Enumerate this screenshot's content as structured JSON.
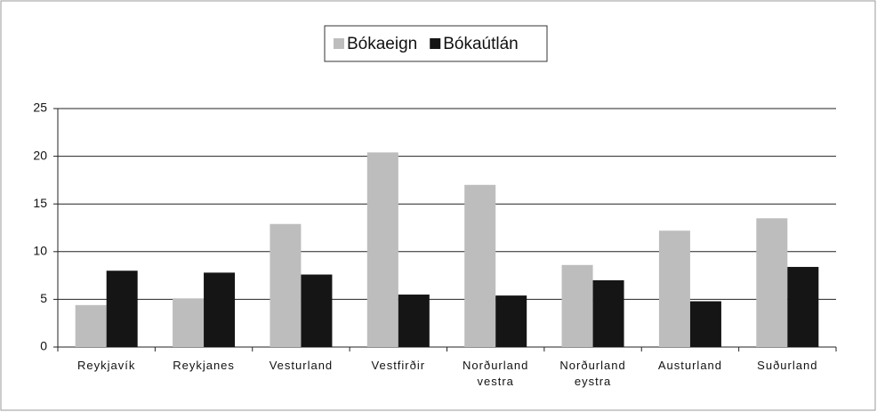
{
  "chart_data": {
    "type": "bar",
    "categories": [
      "Reykjavík",
      "Reykjanes",
      "Vesturland",
      "Vestfirðir",
      "Norðurland vestra",
      "Norðurland eystra",
      "Austurland",
      "Suðurland"
    ],
    "series": [
      {
        "name": "Bókaeign",
        "color": "#bdbdbd",
        "values": [
          4.4,
          5.1,
          12.9,
          20.4,
          17.0,
          8.6,
          12.2,
          13.5
        ]
      },
      {
        "name": "Bókaútlán",
        "color": "#151515",
        "values": [
          8.0,
          7.8,
          7.6,
          5.5,
          5.4,
          7.0,
          4.8,
          8.4
        ]
      }
    ],
    "ylim": [
      0,
      25
    ],
    "yticks": [
      0,
      5,
      10,
      15,
      20,
      25
    ],
    "grid": true,
    "legend": "top"
  }
}
